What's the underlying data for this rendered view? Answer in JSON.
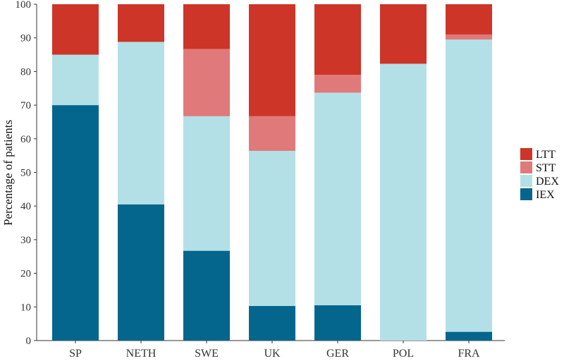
{
  "chart_data": {
    "type": "bar",
    "stacked": true,
    "title": "",
    "xlabel": "",
    "ylabel": "Percentage of patients",
    "ylim": [
      0,
      100
    ],
    "yticks": [
      0,
      10,
      20,
      30,
      40,
      50,
      60,
      70,
      80,
      90,
      100
    ],
    "grid": false,
    "legend_position": "right",
    "categories": [
      "SP",
      "NETH",
      "SWE",
      "UK",
      "GER",
      "POL",
      "FRA"
    ],
    "series": [
      {
        "name": "IEX",
        "color": "#05668d",
        "values": [
          70,
          40.5,
          26.7,
          10.3,
          10.5,
          0,
          2.6
        ]
      },
      {
        "name": "DEX",
        "color": "#b3e0e6",
        "values": [
          15,
          48.3,
          40,
          46.1,
          63.2,
          82.3,
          86.9
        ]
      },
      {
        "name": "STT",
        "color": "#e07a7a",
        "values": [
          0,
          0,
          20,
          10.3,
          5.3,
          0,
          1.5
        ]
      },
      {
        "name": "LTT",
        "color": "#cc3527",
        "values": [
          15,
          11.2,
          13.3,
          33.3,
          21,
          17.7,
          9
        ]
      }
    ],
    "legend_order": [
      "LTT",
      "STT",
      "DEX",
      "IEX"
    ]
  }
}
